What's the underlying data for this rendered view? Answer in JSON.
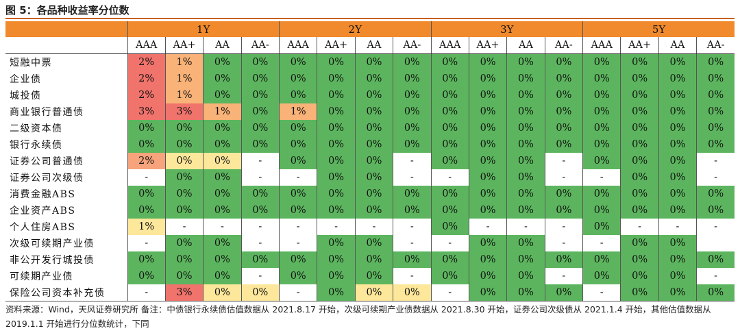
{
  "title": "图 5：各品种收益率分位数",
  "periods": [
    "1Y",
    "2Y",
    "3Y",
    "5Y"
  ],
  "ratings": [
    "AAA",
    "AA+",
    "AA",
    "AA-"
  ],
  "colors": {
    "header": "#f08a2c",
    "green": "#5cb55e",
    "white": "#ffffff",
    "yellow": "#fde79a",
    "orange": "#f9b277",
    "salmon": "#f7a37c",
    "red": "#f0736c"
  },
  "rows": [
    {
      "name": "短融中票",
      "cells": [
        {
          "v": "2%",
          "c": "red"
        },
        {
          "v": "1%",
          "c": "orange"
        },
        {
          "v": "0%",
          "c": "green"
        },
        {
          "v": "0%",
          "c": "green"
        },
        {
          "v": "0%",
          "c": "green"
        },
        {
          "v": "0%",
          "c": "green"
        },
        {
          "v": "0%",
          "c": "green"
        },
        {
          "v": "0%",
          "c": "green"
        },
        {
          "v": "0%",
          "c": "green"
        },
        {
          "v": "0%",
          "c": "green"
        },
        {
          "v": "0%",
          "c": "green"
        },
        {
          "v": "0%",
          "c": "green"
        },
        {
          "v": "0%",
          "c": "green"
        },
        {
          "v": "0%",
          "c": "green"
        },
        {
          "v": "0%",
          "c": "green"
        },
        {
          "v": "0%",
          "c": "green"
        }
      ]
    },
    {
      "name": "企业债",
      "cells": [
        {
          "v": "2%",
          "c": "red"
        },
        {
          "v": "1%",
          "c": "orange"
        },
        {
          "v": "0%",
          "c": "green"
        },
        {
          "v": "0%",
          "c": "green"
        },
        {
          "v": "0%",
          "c": "green"
        },
        {
          "v": "0%",
          "c": "green"
        },
        {
          "v": "0%",
          "c": "green"
        },
        {
          "v": "0%",
          "c": "green"
        },
        {
          "v": "0%",
          "c": "green"
        },
        {
          "v": "0%",
          "c": "green"
        },
        {
          "v": "0%",
          "c": "green"
        },
        {
          "v": "0%",
          "c": "green"
        },
        {
          "v": "0%",
          "c": "green"
        },
        {
          "v": "0%",
          "c": "green"
        },
        {
          "v": "0%",
          "c": "green"
        },
        {
          "v": "0%",
          "c": "green"
        }
      ]
    },
    {
      "name": "城投债",
      "cells": [
        {
          "v": "2%",
          "c": "red"
        },
        {
          "v": "1%",
          "c": "orange"
        },
        {
          "v": "0%",
          "c": "green"
        },
        {
          "v": "0%",
          "c": "green"
        },
        {
          "v": "0%",
          "c": "green"
        },
        {
          "v": "0%",
          "c": "green"
        },
        {
          "v": "0%",
          "c": "green"
        },
        {
          "v": "0%",
          "c": "green"
        },
        {
          "v": "0%",
          "c": "green"
        },
        {
          "v": "0%",
          "c": "green"
        },
        {
          "v": "0%",
          "c": "green"
        },
        {
          "v": "0%",
          "c": "green"
        },
        {
          "v": "0%",
          "c": "green"
        },
        {
          "v": "0%",
          "c": "green"
        },
        {
          "v": "0%",
          "c": "green"
        },
        {
          "v": "0%",
          "c": "green"
        }
      ]
    },
    {
      "name": "商业银行普通债",
      "cells": [
        {
          "v": "3%",
          "c": "red"
        },
        {
          "v": "3%",
          "c": "red"
        },
        {
          "v": "1%",
          "c": "orange"
        },
        {
          "v": "0%",
          "c": "green"
        },
        {
          "v": "1%",
          "c": "orange"
        },
        {
          "v": "0%",
          "c": "green"
        },
        {
          "v": "0%",
          "c": "green"
        },
        {
          "v": "0%",
          "c": "green"
        },
        {
          "v": "0%",
          "c": "green"
        },
        {
          "v": "0%",
          "c": "green"
        },
        {
          "v": "0%",
          "c": "green"
        },
        {
          "v": "0%",
          "c": "green"
        },
        {
          "v": "0%",
          "c": "green"
        },
        {
          "v": "0%",
          "c": "green"
        },
        {
          "v": "0%",
          "c": "green"
        },
        {
          "v": "0%",
          "c": "green"
        }
      ]
    },
    {
      "name": "二级资本债",
      "cells": [
        {
          "v": "0%",
          "c": "green"
        },
        {
          "v": "0%",
          "c": "green"
        },
        {
          "v": "0%",
          "c": "green"
        },
        {
          "v": "0%",
          "c": "green"
        },
        {
          "v": "0%",
          "c": "green"
        },
        {
          "v": "0%",
          "c": "green"
        },
        {
          "v": "0%",
          "c": "green"
        },
        {
          "v": "0%",
          "c": "green"
        },
        {
          "v": "0%",
          "c": "green"
        },
        {
          "v": "0%",
          "c": "green"
        },
        {
          "v": "0%",
          "c": "green"
        },
        {
          "v": "0%",
          "c": "green"
        },
        {
          "v": "0%",
          "c": "green"
        },
        {
          "v": "0%",
          "c": "green"
        },
        {
          "v": "0%",
          "c": "green"
        },
        {
          "v": "0%",
          "c": "green"
        }
      ]
    },
    {
      "name": "银行永续债",
      "cells": [
        {
          "v": "0%",
          "c": "green"
        },
        {
          "v": "0%",
          "c": "green"
        },
        {
          "v": "0%",
          "c": "green"
        },
        {
          "v": "0%",
          "c": "green"
        },
        {
          "v": "0%",
          "c": "green"
        },
        {
          "v": "0%",
          "c": "green"
        },
        {
          "v": "0%",
          "c": "green"
        },
        {
          "v": "0%",
          "c": "green"
        },
        {
          "v": "0%",
          "c": "green"
        },
        {
          "v": "0%",
          "c": "green"
        },
        {
          "v": "0%",
          "c": "green"
        },
        {
          "v": "0%",
          "c": "green"
        },
        {
          "v": "0%",
          "c": "green"
        },
        {
          "v": "0%",
          "c": "green"
        },
        {
          "v": "0%",
          "c": "green"
        },
        {
          "v": "0%",
          "c": "green"
        }
      ]
    },
    {
      "name": "证券公司普通债",
      "cells": [
        {
          "v": "2%",
          "c": "salmon"
        },
        {
          "v": "0%",
          "c": "yellow"
        },
        {
          "v": "0%",
          "c": "yellow"
        },
        {
          "v": "-",
          "c": "white"
        },
        {
          "v": "0%",
          "c": "green"
        },
        {
          "v": "0%",
          "c": "green"
        },
        {
          "v": "0%",
          "c": "green"
        },
        {
          "v": "-",
          "c": "white"
        },
        {
          "v": "0%",
          "c": "green"
        },
        {
          "v": "0%",
          "c": "green"
        },
        {
          "v": "0%",
          "c": "green"
        },
        {
          "v": "-",
          "c": "white"
        },
        {
          "v": "0%",
          "c": "green"
        },
        {
          "v": "0%",
          "c": "green"
        },
        {
          "v": "0%",
          "c": "green"
        },
        {
          "v": "-",
          "c": "white"
        }
      ]
    },
    {
      "name": "证券公司次级债",
      "cells": [
        {
          "v": "-",
          "c": "white"
        },
        {
          "v": "0%",
          "c": "green"
        },
        {
          "v": "0%",
          "c": "green"
        },
        {
          "v": "-",
          "c": "white"
        },
        {
          "v": "-",
          "c": "white"
        },
        {
          "v": "0%",
          "c": "green"
        },
        {
          "v": "0%",
          "c": "green"
        },
        {
          "v": "-",
          "c": "white"
        },
        {
          "v": "-",
          "c": "white"
        },
        {
          "v": "0%",
          "c": "green"
        },
        {
          "v": "0%",
          "c": "green"
        },
        {
          "v": "-",
          "c": "white"
        },
        {
          "v": "-",
          "c": "white"
        },
        {
          "v": "0%",
          "c": "green"
        },
        {
          "v": "0%",
          "c": "green"
        },
        {
          "v": "-",
          "c": "white"
        }
      ]
    },
    {
      "name": "消费金融ABS",
      "cells": [
        {
          "v": "0%",
          "c": "green"
        },
        {
          "v": "0%",
          "c": "green"
        },
        {
          "v": "0%",
          "c": "green"
        },
        {
          "v": "0%",
          "c": "green"
        },
        {
          "v": "0%",
          "c": "green"
        },
        {
          "v": "0%",
          "c": "green"
        },
        {
          "v": "0%",
          "c": "green"
        },
        {
          "v": "0%",
          "c": "green"
        },
        {
          "v": "0%",
          "c": "green"
        },
        {
          "v": "0%",
          "c": "green"
        },
        {
          "v": "0%",
          "c": "green"
        },
        {
          "v": "0%",
          "c": "green"
        },
        {
          "v": "0%",
          "c": "green"
        },
        {
          "v": "0%",
          "c": "green"
        },
        {
          "v": "0%",
          "c": "green"
        },
        {
          "v": "0%",
          "c": "green"
        }
      ]
    },
    {
      "name": "企业资产ABS",
      "cells": [
        {
          "v": "0%",
          "c": "green"
        },
        {
          "v": "0%",
          "c": "green"
        },
        {
          "v": "0%",
          "c": "green"
        },
        {
          "v": "0%",
          "c": "green"
        },
        {
          "v": "0%",
          "c": "green"
        },
        {
          "v": "0%",
          "c": "green"
        },
        {
          "v": "0%",
          "c": "green"
        },
        {
          "v": "0%",
          "c": "green"
        },
        {
          "v": "0%",
          "c": "green"
        },
        {
          "v": "0%",
          "c": "green"
        },
        {
          "v": "0%",
          "c": "green"
        },
        {
          "v": "0%",
          "c": "green"
        },
        {
          "v": "0%",
          "c": "green"
        },
        {
          "v": "0%",
          "c": "green"
        },
        {
          "v": "0%",
          "c": "green"
        },
        {
          "v": "0%",
          "c": "green"
        }
      ]
    },
    {
      "name": "个人住房ABS",
      "cells": [
        {
          "v": "1%",
          "c": "yellow"
        },
        {
          "v": "-",
          "c": "white"
        },
        {
          "v": "-",
          "c": "white"
        },
        {
          "v": "-",
          "c": "white"
        },
        {
          "v": "-",
          "c": "white"
        },
        {
          "v": "-",
          "c": "white"
        },
        {
          "v": "-",
          "c": "white"
        },
        {
          "v": "-",
          "c": "white"
        },
        {
          "v": "0%",
          "c": "green"
        },
        {
          "v": "-",
          "c": "white"
        },
        {
          "v": "-",
          "c": "white"
        },
        {
          "v": "-",
          "c": "white"
        },
        {
          "v": "0%",
          "c": "green"
        },
        {
          "v": "-",
          "c": "white"
        },
        {
          "v": "-",
          "c": "white"
        },
        {
          "v": "-",
          "c": "white"
        }
      ]
    },
    {
      "name": "次级可续期产业债",
      "cells": [
        {
          "v": "-",
          "c": "white"
        },
        {
          "v": "0%",
          "c": "green"
        },
        {
          "v": "0%",
          "c": "green"
        },
        {
          "v": "-",
          "c": "white"
        },
        {
          "v": "-",
          "c": "white"
        },
        {
          "v": "0%",
          "c": "green"
        },
        {
          "v": "0%",
          "c": "green"
        },
        {
          "v": "-",
          "c": "white"
        },
        {
          "v": "-",
          "c": "white"
        },
        {
          "v": "0%",
          "c": "green"
        },
        {
          "v": "0%",
          "c": "green"
        },
        {
          "v": "-",
          "c": "white"
        },
        {
          "v": "-",
          "c": "white"
        },
        {
          "v": "0%",
          "c": "green"
        },
        {
          "v": "0%",
          "c": "green"
        },
        {
          "v": "",
          "c": "white"
        }
      ]
    },
    {
      "name": "非公开发行城投债",
      "cells": [
        {
          "v": "0%",
          "c": "green"
        },
        {
          "v": "0%",
          "c": "green"
        },
        {
          "v": "0%",
          "c": "green"
        },
        {
          "v": "0%",
          "c": "green"
        },
        {
          "v": "0%",
          "c": "green"
        },
        {
          "v": "0%",
          "c": "green"
        },
        {
          "v": "0%",
          "c": "green"
        },
        {
          "v": "0%",
          "c": "green"
        },
        {
          "v": "0%",
          "c": "green"
        },
        {
          "v": "0%",
          "c": "green"
        },
        {
          "v": "0%",
          "c": "green"
        },
        {
          "v": "0%",
          "c": "green"
        },
        {
          "v": "0%",
          "c": "green"
        },
        {
          "v": "0%",
          "c": "green"
        },
        {
          "v": "0%",
          "c": "green"
        },
        {
          "v": "0%",
          "c": "green"
        }
      ]
    },
    {
      "name": "可续期产业债",
      "cells": [
        {
          "v": "0%",
          "c": "green"
        },
        {
          "v": "0%",
          "c": "green"
        },
        {
          "v": "0%",
          "c": "green"
        },
        {
          "v": "-",
          "c": "white"
        },
        {
          "v": "0%",
          "c": "green"
        },
        {
          "v": "0%",
          "c": "green"
        },
        {
          "v": "0%",
          "c": "green"
        },
        {
          "v": "-",
          "c": "white"
        },
        {
          "v": "0%",
          "c": "green"
        },
        {
          "v": "0%",
          "c": "green"
        },
        {
          "v": "0%",
          "c": "green"
        },
        {
          "v": "-",
          "c": "white"
        },
        {
          "v": "0%",
          "c": "green"
        },
        {
          "v": "0%",
          "c": "green"
        },
        {
          "v": "0%",
          "c": "green"
        },
        {
          "v": "-",
          "c": "white"
        }
      ]
    },
    {
      "name": "保险公司资本补充债",
      "cells": [
        {
          "v": "-",
          "c": "white"
        },
        {
          "v": "3%",
          "c": "red"
        },
        {
          "v": "0%",
          "c": "yellow"
        },
        {
          "v": "0%",
          "c": "yellow"
        },
        {
          "v": "-",
          "c": "white"
        },
        {
          "v": "0%",
          "c": "green"
        },
        {
          "v": "0%",
          "c": "yellow"
        },
        {
          "v": "0%",
          "c": "yellow"
        },
        {
          "v": "-",
          "c": "white"
        },
        {
          "v": "0%",
          "c": "green"
        },
        {
          "v": "0%",
          "c": "green"
        },
        {
          "v": "0%",
          "c": "green"
        },
        {
          "v": "-",
          "c": "white"
        },
        {
          "v": "0%",
          "c": "green"
        },
        {
          "v": "0%",
          "c": "green"
        },
        {
          "v": "0%",
          "c": "green"
        }
      ]
    }
  ],
  "note": "资料来源：Wind，天风证券研究所  备注：中债银行永续债估值数据从 2021.8.17 开始，次级可续期产业债数据从 2021.8.30 开始，证券公司次级债从 2021.1.4 开始，其他估值数据从 2019.1.1 开始进行分位数统计，下同"
}
